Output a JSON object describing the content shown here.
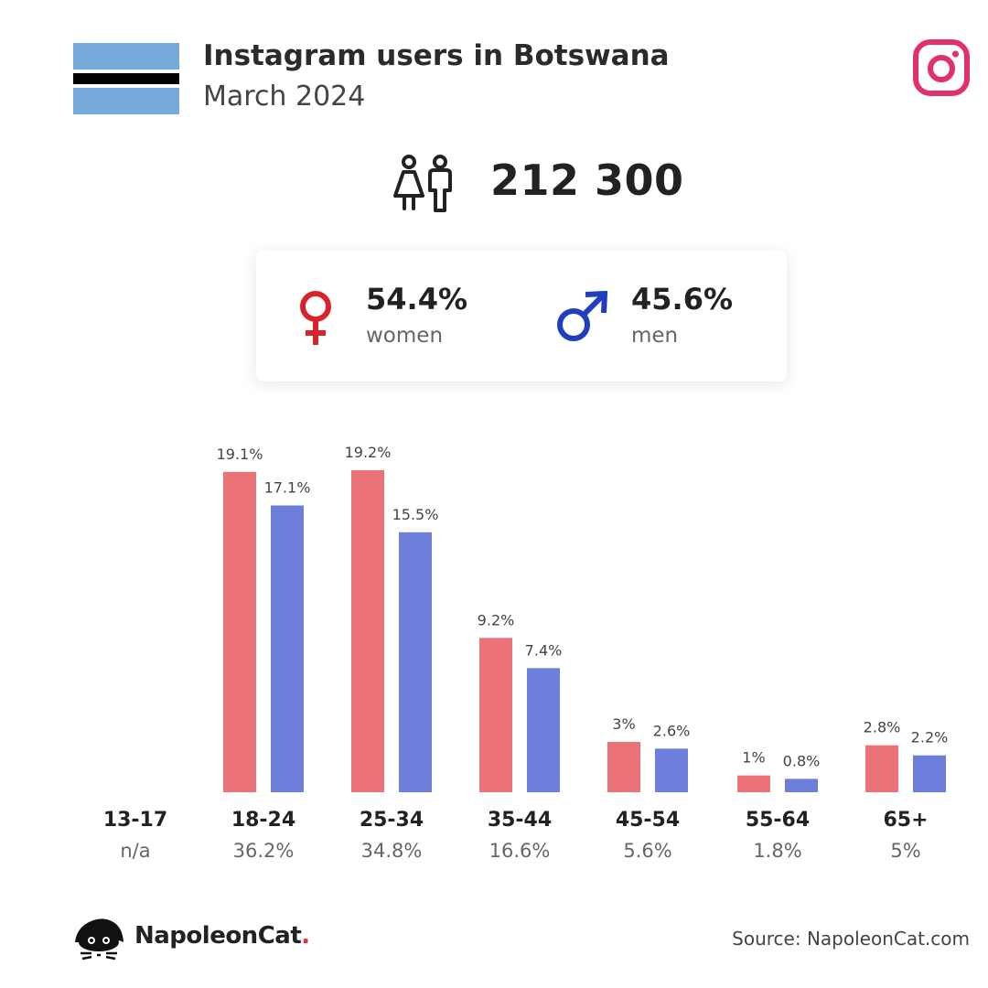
{
  "header": {
    "title": "Instagram users in Botswana",
    "subtitle": "March 2024",
    "flag_colors": {
      "field": "#75aadb",
      "band": "#000000",
      "fimbriation": "#ffffff"
    },
    "brand_icon": "instagram-icon"
  },
  "total": {
    "icon": "people-icon",
    "value": "212 300"
  },
  "gender": {
    "women": {
      "icon": "female-symbol-icon",
      "percent": "54.4%",
      "label": "women",
      "color": "#d8232a"
    },
    "men": {
      "icon": "male-symbol-icon",
      "percent": "45.6%",
      "label": "men",
      "color": "#1f3fbf"
    }
  },
  "chart_data": {
    "type": "bar",
    "categories": [
      "13-17",
      "18-24",
      "25-34",
      "35-44",
      "45-54",
      "55-64",
      "65+"
    ],
    "category_totals": [
      "n/a",
      "36.2%",
      "34.8%",
      "16.6%",
      "5.6%",
      "1.8%",
      "5%"
    ],
    "series": [
      {
        "color": "#eb7378",
        "values": [
          null,
          19.1,
          19.2,
          9.2,
          3,
          1,
          2.8
        ],
        "labels": [
          "",
          "19.1%",
          "19.2%",
          "9.2%",
          "3%",
          "1%",
          "2.8%"
        ]
      },
      {
        "color": "#6d7edb",
        "values": [
          null,
          17.1,
          15.5,
          7.4,
          2.6,
          0.8,
          2.2
        ],
        "labels": [
          "",
          "17.1%",
          "15.5%",
          "7.4%",
          "2.6%",
          "0.8%",
          "2.2%"
        ]
      }
    ],
    "ylim": [
      0,
      19.2
    ],
    "grid": false,
    "legend": "none"
  },
  "footer": {
    "brand_icon": "napoleoncat-logo-icon",
    "brand_name": "NapoleonCat",
    "brand_dot": ".",
    "source": "Source: NapoleonCat.com"
  }
}
